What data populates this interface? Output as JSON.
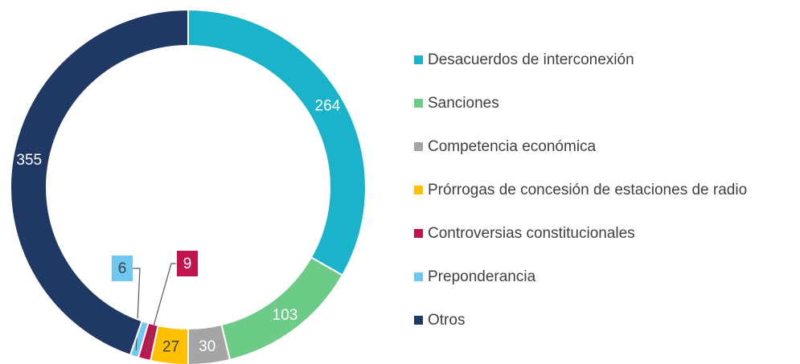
{
  "chart_data": {
    "type": "donut",
    "categories": [
      "Desacuerdos de interconexión",
      "Sanciones",
      "Competencia económica",
      "Prórrogas de concesión de estaciones de radio",
      "Controversias constitucionales",
      "Preponderancia",
      "Otros"
    ],
    "values": [
      264,
      103,
      30,
      27,
      9,
      6,
      355
    ],
    "colors": [
      "#1ab3c9",
      "#6ccb87",
      "#a5a5a5",
      "#ffc000",
      "#c0134f",
      "#6fc8f2",
      "#203864"
    ],
    "legend": "right"
  }
}
